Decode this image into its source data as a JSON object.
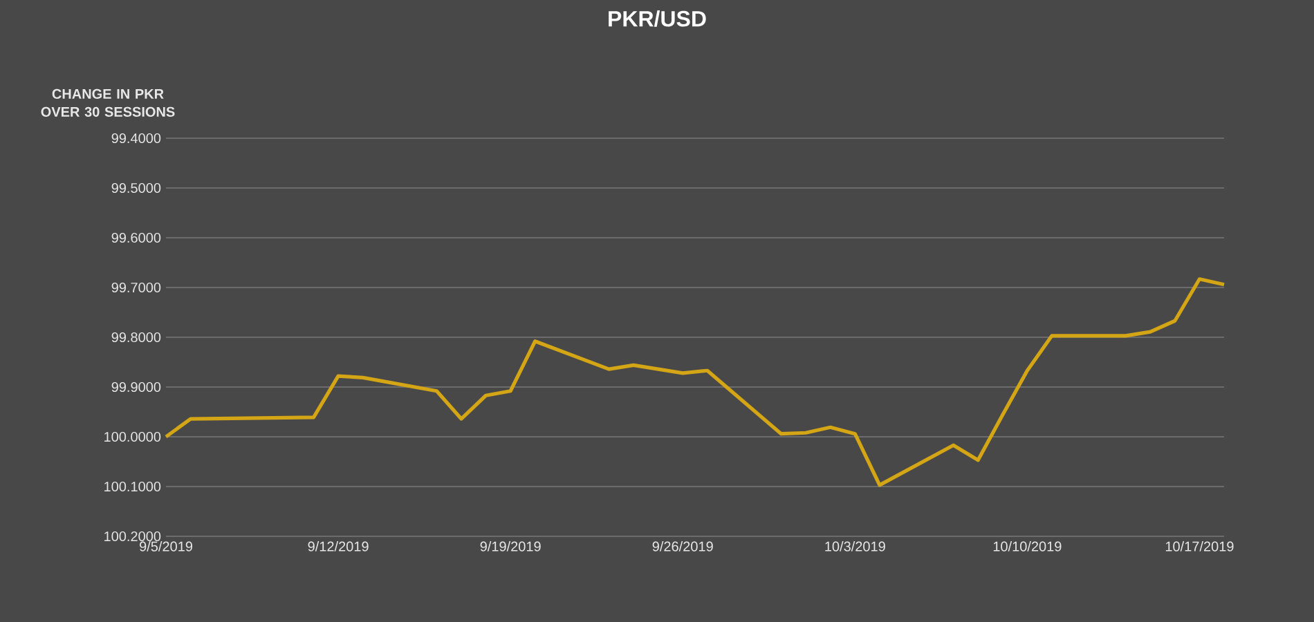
{
  "chart_data": {
    "type": "line",
    "title": "PKR/USD",
    "ylabel": "CHANGE IN PKR OVER 30 SESSIONS",
    "x": [
      "2019-09-05",
      "2019-09-06",
      "2019-09-11",
      "2019-09-12",
      "2019-09-13",
      "2019-09-16",
      "2019-09-17",
      "2019-09-18",
      "2019-09-19",
      "2019-09-20",
      "2019-09-23",
      "2019-09-24",
      "2019-09-26",
      "2019-09-27",
      "2019-09-30",
      "2019-10-01",
      "2019-10-02",
      "2019-10-03",
      "2019-10-04",
      "2019-10-07",
      "2019-10-08",
      "2019-10-09",
      "2019-10-10",
      "2019-10-11",
      "2019-10-14",
      "2019-10-15",
      "2019-10-16",
      "2019-10-17",
      "2019-10-18"
    ],
    "series": [
      {
        "color": "#d4a514",
        "values": [
          100.0,
          99.964,
          99.961,
          99.878,
          99.881,
          99.908,
          99.964,
          99.917,
          99.908,
          99.808,
          99.864,
          99.856,
          99.872,
          99.867,
          99.994,
          99.992,
          99.981,
          99.994,
          100.097,
          100.017,
          100.047,
          99.956,
          99.867,
          99.797,
          99.797,
          99.789,
          99.767,
          99.683,
          99.694
        ]
      }
    ],
    "xlim": [
      "2019-09-05",
      "2019-10-18"
    ],
    "xticks": [
      {
        "value": "2019-09-05",
        "label": "9/5/2019"
      },
      {
        "value": "2019-09-12",
        "label": "9/12/2019"
      },
      {
        "value": "2019-09-19",
        "label": "9/19/2019"
      },
      {
        "value": "2019-09-26",
        "label": "9/26/2019"
      },
      {
        "value": "2019-10-03",
        "label": "10/3/2019"
      },
      {
        "value": "2019-10-10",
        "label": "10/10/2019"
      },
      {
        "value": "2019-10-17",
        "label": "10/17/2019"
      }
    ],
    "ylim": [
      100.2,
      99.4
    ],
    "yticks": [
      {
        "value": 99.4,
        "label": "99.4000"
      },
      {
        "value": 99.5,
        "label": "99.5000"
      },
      {
        "value": 99.6,
        "label": "99.6000"
      },
      {
        "value": 99.7,
        "label": "99.7000"
      },
      {
        "value": 99.8,
        "label": "99.8000"
      },
      {
        "value": 99.9,
        "label": "99.9000"
      },
      {
        "value": 100.0,
        "label": "100.0000"
      },
      {
        "value": 100.1,
        "label": "100.1000"
      },
      {
        "value": 100.2,
        "label": "100.2000"
      }
    ],
    "grid": "y"
  }
}
